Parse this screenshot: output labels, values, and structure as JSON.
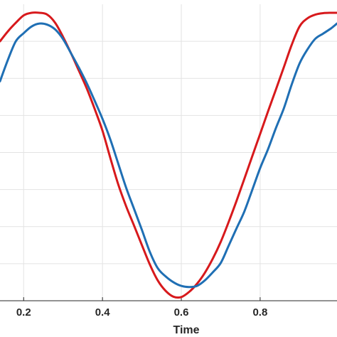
{
  "chart_data": {
    "type": "line",
    "title": "",
    "xlabel": "Time",
    "ylabel": "",
    "xlim": [
      0.14,
      0.995
    ],
    "ylim": [
      0.0,
      0.8
    ],
    "x_ticks": [
      0.2,
      0.4,
      0.6,
      0.8
    ],
    "x_tick_labels": [
      "0.2",
      "0.4",
      "0.6",
      "0.8"
    ],
    "y_gridlines": [
      0.1,
      0.2,
      0.3,
      0.4,
      0.5,
      0.6,
      0.7
    ],
    "grid": true,
    "legend": "none",
    "series": [
      {
        "color": "#d7191c",
        "x": [
          0.14,
          0.16,
          0.18,
          0.2,
          0.22,
          0.24,
          0.26,
          0.28,
          0.3,
          0.32,
          0.34,
          0.36,
          0.38,
          0.4,
          0.42,
          0.44,
          0.46,
          0.48,
          0.5,
          0.52,
          0.54,
          0.56,
          0.58,
          0.6,
          0.62,
          0.64,
          0.66,
          0.68,
          0.7,
          0.72,
          0.74,
          0.76,
          0.78,
          0.8,
          0.82,
          0.84,
          0.86,
          0.88,
          0.9,
          0.92,
          0.94,
          0.96,
          0.98,
          0.995
        ],
        "y": [
          0.7,
          0.727,
          0.75,
          0.77,
          0.777,
          0.777,
          0.772,
          0.75,
          0.712,
          0.668,
          0.621,
          0.573,
          0.518,
          0.459,
          0.385,
          0.314,
          0.255,
          0.203,
          0.15,
          0.098,
          0.055,
          0.027,
          0.011,
          0.01,
          0.024,
          0.046,
          0.076,
          0.114,
          0.159,
          0.212,
          0.269,
          0.329,
          0.39,
          0.45,
          0.511,
          0.57,
          0.63,
          0.69,
          0.74,
          0.762,
          0.772,
          0.776,
          0.777,
          0.777
        ]
      },
      {
        "color": "#1f6fb4",
        "x": [
          0.14,
          0.16,
          0.18,
          0.2,
          0.22,
          0.24,
          0.26,
          0.28,
          0.3,
          0.32,
          0.34,
          0.36,
          0.38,
          0.4,
          0.42,
          0.44,
          0.46,
          0.48,
          0.5,
          0.52,
          0.54,
          0.56,
          0.58,
          0.6,
          0.62,
          0.64,
          0.66,
          0.68,
          0.7,
          0.72,
          0.74,
          0.76,
          0.78,
          0.8,
          0.82,
          0.84,
          0.86,
          0.88,
          0.9,
          0.92,
          0.94,
          0.96,
          0.98,
          0.995
        ],
        "y": [
          0.592,
          0.65,
          0.7,
          0.722,
          0.74,
          0.748,
          0.745,
          0.732,
          0.706,
          0.668,
          0.629,
          0.587,
          0.54,
          0.491,
          0.435,
          0.37,
          0.305,
          0.248,
          0.191,
          0.132,
          0.088,
          0.066,
          0.05,
          0.04,
          0.037,
          0.04,
          0.055,
          0.077,
          0.102,
          0.148,
          0.195,
          0.241,
          0.299,
          0.358,
          0.409,
          0.466,
          0.519,
          0.583,
          0.64,
          0.678,
          0.707,
          0.721,
          0.735,
          0.748
        ]
      }
    ]
  }
}
